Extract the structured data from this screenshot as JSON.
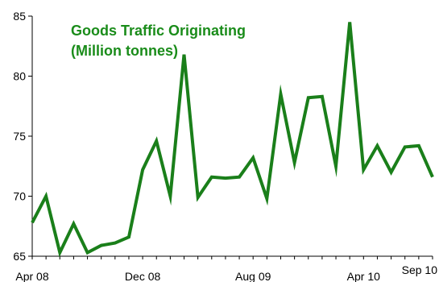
{
  "chart_data": {
    "type": "line",
    "title_line1": "Goods Traffic Originating",
    "title_line2": "(Million tonnes)",
    "xlabel": "",
    "ylabel": "",
    "x_tick_labels": [
      "Apr 08",
      "Dec 08",
      "Aug 09",
      "Apr 10",
      "Sep 10"
    ],
    "y_ticks": [
      65,
      70,
      75,
      80,
      85
    ],
    "ylim": [
      65,
      85
    ],
    "grid": false,
    "series": [
      {
        "color": "#1a7f1a",
        "x": [
          "Apr 08",
          "May 08",
          "Jun 08",
          "Jul 08",
          "Aug 08",
          "Sep 08",
          "Oct 08",
          "Nov 08",
          "Dec 08",
          "Jan 09",
          "Feb 09",
          "Mar 09",
          "Apr 09",
          "May 09",
          "Jun 09",
          "Jul 09",
          "Aug 09",
          "Sep 09",
          "Oct 09",
          "Nov 09",
          "Dec 09",
          "Jan 10",
          "Feb 10",
          "Mar 10",
          "Apr 10",
          "May 10",
          "Jun 10",
          "Jul 10",
          "Aug 10",
          "Sep 10"
        ],
        "values": [
          67.8,
          70.0,
          65.3,
          67.7,
          65.3,
          65.9,
          66.1,
          66.6,
          72.2,
          74.6,
          70.0,
          81.8,
          69.9,
          71.6,
          71.5,
          71.6,
          73.2,
          69.8,
          78.5,
          72.8,
          78.2,
          78.3,
          72.5,
          84.5,
          72.2,
          74.2,
          72.0,
          74.1,
          74.2,
          71.6
        ]
      }
    ]
  },
  "colors": {
    "line": "#1a7f1a",
    "title": "#1a8c1a",
    "axis": "#000000"
  }
}
